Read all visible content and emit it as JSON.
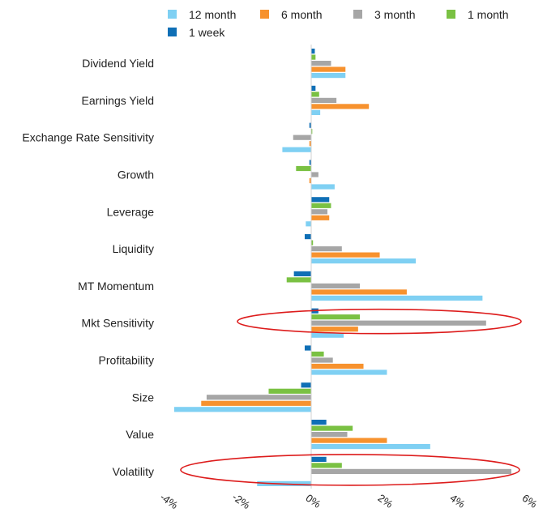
{
  "chart_data": {
    "type": "bar",
    "orientation": "horizontal",
    "categories": [
      "Dividend Yield",
      "Earnings Yield",
      "Exchange Rate Sensitivity",
      "Growth",
      "Leverage",
      "Liquidity",
      "MT Momentum",
      "Mkt Sensitivity",
      "Profitability",
      "Size",
      "Value",
      "Volatility"
    ],
    "series": [
      {
        "name": "12 month",
        "color": "#7fd0f3",
        "values": [
          0.95,
          0.25,
          -0.8,
          0.65,
          -0.15,
          2.9,
          4.75,
          0.9,
          2.1,
          -3.8,
          3.3,
          -1.5
        ]
      },
      {
        "name": "6 month",
        "color": "#f7922e",
        "values": [
          0.95,
          1.6,
          -0.05,
          -0.05,
          0.5,
          1.9,
          2.65,
          1.3,
          1.45,
          -3.05,
          2.1,
          0.0
        ]
      },
      {
        "name": "3 month",
        "color": "#a6a6a6",
        "values": [
          0.55,
          0.7,
          -0.5,
          0.2,
          0.45,
          0.85,
          1.35,
          4.85,
          0.6,
          -2.9,
          1.0,
          5.55
        ]
      },
      {
        "name": "1 month",
        "color": "#7ac143",
        "values": [
          0.12,
          0.22,
          0.03,
          -0.42,
          0.55,
          0.05,
          -0.68,
          1.35,
          0.35,
          -1.18,
          1.15,
          0.85
        ]
      },
      {
        "name": "1 week",
        "color": "#0f6fb6",
        "values": [
          0.1,
          0.12,
          -0.05,
          -0.05,
          0.5,
          -0.18,
          -0.48,
          0.2,
          -0.18,
          -0.28,
          0.42,
          0.42
        ]
      }
    ],
    "xaxis": {
      "min": -4,
      "max": 6,
      "ticks": [
        "-4%",
        "-2%",
        "0%",
        "2%",
        "4%",
        "6%"
      ]
    },
    "grid": false,
    "legend_position": "top",
    "highlighted_categories": [
      "Mkt Sensitivity",
      "Volatility"
    ],
    "highlight_color": "#dd1c1c",
    "title": "",
    "xlabel": "",
    "ylabel": ""
  }
}
